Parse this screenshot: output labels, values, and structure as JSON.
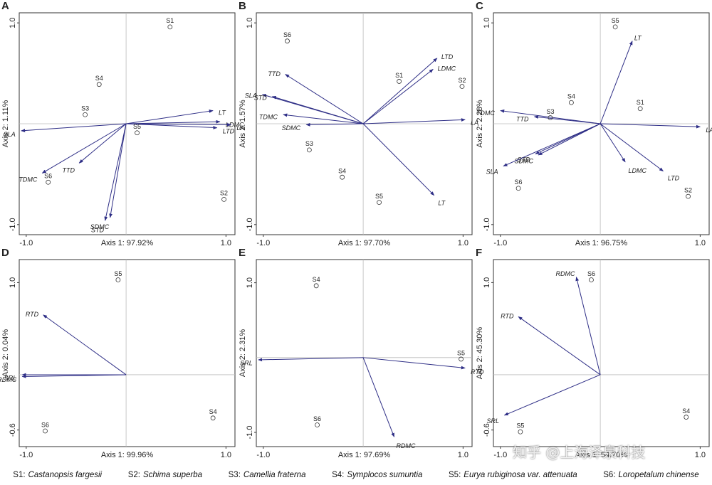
{
  "chart_data": [
    {
      "type": "biplot",
      "panel": "A",
      "xlabel": "Axis 1: 97.92%",
      "ylabel": "Axis 2: 1.11%",
      "xlim": [
        -1.07,
        1.09
      ],
      "ylim": [
        -1.1,
        1.1
      ],
      "xticks": [
        {
          "value": -1,
          "label": "-1.0"
        },
        {
          "value": 1,
          "label": "1.0"
        }
      ],
      "yticks": [
        {
          "value": 1,
          "label": "1.0"
        },
        {
          "value": -1,
          "label": "-1.0"
        }
      ],
      "points": {
        "names": [
          "S1",
          "S4",
          "S3",
          "S5",
          "S6",
          "S2"
        ],
        "x": [
          0.44,
          -0.27,
          -0.41,
          0.11,
          -0.78,
          0.98
        ],
        "y": [
          0.96,
          0.39,
          0.09,
          -0.09,
          -0.58,
          -0.75
        ]
      },
      "vectors": {
        "color": "#2e2e86",
        "names": [
          "LT",
          "LDMC",
          "LTD",
          "LA",
          "SLA",
          "TTD",
          "TDMC",
          "STD",
          "SDMC"
        ],
        "x": [
          0.87,
          0.94,
          0.91,
          1.05,
          -1.05,
          -0.47,
          -0.84,
          -0.21,
          -0.16
        ],
        "y": [
          0.13,
          0.02,
          -0.04,
          -0.01,
          -0.07,
          -0.39,
          -0.49,
          -0.96,
          -0.93
        ]
      }
    },
    {
      "type": "biplot",
      "panel": "B",
      "xlabel": "Axis 1: 97.70%",
      "ylabel": "Axis 2: 1.57%",
      "xlim": [
        -1.07,
        1.09
      ],
      "ylim": [
        -1.1,
        1.1
      ],
      "xticks": [
        {
          "value": -1,
          "label": "-1.0"
        },
        {
          "value": 1,
          "label": "1.0"
        }
      ],
      "yticks": [
        {
          "value": 1,
          "label": "1.0"
        },
        {
          "value": -1,
          "label": "-1.0"
        }
      ],
      "points": {
        "names": [
          "S6",
          "S1",
          "S2",
          "S3",
          "S4",
          "S5"
        ],
        "x": [
          -0.76,
          0.36,
          0.99,
          -0.54,
          -0.21,
          0.16
        ],
        "y": [
          0.82,
          0.42,
          0.37,
          -0.26,
          -0.53,
          -0.78
        ]
      },
      "vectors": {
        "color": "#2e2e86",
        "names": [
          "LTD",
          "LDMC",
          "LA",
          "LT",
          "TTD",
          "SLA",
          "STD",
          "TDMC",
          "SDMC"
        ],
        "x": [
          0.74,
          0.7,
          1.02,
          0.71,
          -0.78,
          -1.01,
          -0.91,
          -0.8,
          -0.57
        ],
        "y": [
          0.65,
          0.54,
          0.04,
          -0.71,
          0.49,
          0.29,
          0.27,
          0.09,
          -0.01
        ]
      }
    },
    {
      "type": "biplot",
      "panel": "C",
      "xlabel": "Axis 1: 96.75%",
      "ylabel": "Axis 2: 2.28%",
      "xlim": [
        -1.07,
        1.09
      ],
      "ylim": [
        -1.1,
        1.1
      ],
      "xticks": [
        {
          "value": -1,
          "label": "-1.0"
        },
        {
          "value": 1,
          "label": "1.0"
        }
      ],
      "yticks": [
        {
          "value": 1,
          "label": "1.0"
        },
        {
          "value": -1,
          "label": "-1.0"
        }
      ],
      "points": {
        "names": [
          "S5",
          "S4",
          "S1",
          "S3",
          "S6",
          "S2"
        ],
        "x": [
          0.15,
          -0.29,
          0.4,
          -0.5,
          -0.82,
          0.88
        ],
        "y": [
          0.96,
          0.21,
          0.15,
          0.06,
          -0.64,
          -0.72
        ]
      },
      "vectors": {
        "color": "#2e2e86",
        "names": [
          "LT",
          "LA",
          "LDMC",
          "LTD",
          "TDMC",
          "TTD",
          "STD",
          "SDMC",
          "SLA"
        ],
        "x": [
          0.32,
          1.0,
          0.25,
          0.63,
          -1.0,
          -0.66,
          -0.65,
          -0.62,
          -0.97
        ],
        "y": [
          0.82,
          -0.03,
          -0.38,
          -0.47,
          0.13,
          0.07,
          -0.3,
          -0.31,
          -0.42
        ]
      }
    },
    {
      "type": "biplot",
      "panel": "D",
      "xlabel": "Axis 1: 99.96%",
      "ylabel": "Axis 2: 0.04%",
      "xlim": [
        -1.07,
        1.09
      ],
      "ylim": [
        -0.78,
        1.25
      ],
      "xticks": [
        {
          "value": -1,
          "label": "-1.0"
        },
        {
          "value": 1,
          "label": "1.0"
        }
      ],
      "yticks": [
        {
          "value": 1,
          "label": "1.0"
        },
        -0.6
      ],
      "points": {
        "names": [
          "S5",
          "S4",
          "S6"
        ],
        "x": [
          -0.08,
          0.87,
          -0.81
        ],
        "y": [
          1.03,
          -0.47,
          -0.61
        ]
      },
      "vectors": {
        "color": "#2e2e86",
        "names": [
          "RTD",
          "SRL",
          "RDMC"
        ],
        "x": [
          -0.83,
          -1.04,
          -1.04
        ],
        "y": [
          0.65,
          0.0,
          -0.02
        ]
      }
    },
    {
      "type": "biplot",
      "panel": "E",
      "xlabel": "Axis 1: 97.69%",
      "ylabel": "Axis 2: 2.31%",
      "xlim": [
        -1.07,
        1.09
      ],
      "ylim": [
        -1.19,
        1.31
      ],
      "xticks": [
        {
          "value": -1,
          "label": "-1.0"
        },
        {
          "value": 1,
          "label": "1.0"
        }
      ],
      "yticks": [
        {
          "value": 1,
          "label": "1.0"
        },
        {
          "value": -1,
          "label": "-1.0"
        }
      ],
      "points": {
        "names": [
          "S4",
          "S5",
          "S6"
        ],
        "x": [
          -0.47,
          0.98,
          -0.46
        ],
        "y": [
          0.96,
          -0.02,
          -0.9
        ]
      },
      "vectors": {
        "color": "#2e2e86",
        "names": [
          "SRL",
          "RTD",
          "RDMC"
        ],
        "x": [
          -1.05,
          1.02,
          0.31
        ],
        "y": [
          -0.03,
          -0.14,
          -1.06
        ]
      }
    },
    {
      "type": "biplot",
      "panel": "F",
      "xlabel": "Axis 1: 54.70%",
      "ylabel": "Axis 2: 45.30%",
      "xlim": [
        -1.07,
        1.09
      ],
      "ylim": [
        -0.78,
        1.25
      ],
      "xticks": [
        {
          "value": -1,
          "label": "-1.0"
        },
        {
          "value": 1,
          "label": "1.0"
        }
      ],
      "yticks": [
        {
          "value": 1,
          "label": "1.0"
        },
        -0.6
      ],
      "points": {
        "names": [
          "S6",
          "S4",
          "S5"
        ],
        "x": [
          -0.09,
          0.86,
          -0.8
        ],
        "y": [
          1.03,
          -0.46,
          -0.62
        ]
      },
      "vectors": {
        "color": "#2e2e86",
        "names": [
          "RDMC",
          "RTD",
          "SRL"
        ],
        "x": [
          -0.24,
          -0.82,
          -0.96
        ],
        "y": [
          1.06,
          0.63,
          -0.44
        ]
      }
    }
  ],
  "legend": [
    {
      "code": "S1:",
      "species": "Castanopsis fargesii"
    },
    {
      "code": "S2:",
      "species": "Schima superba"
    },
    {
      "code": "S3:",
      "species": "Camellia fraterna"
    },
    {
      "code": "S4:",
      "species": "Symplocos sumuntia"
    },
    {
      "code": "S5:",
      "species": "Eurya rubiginosa var. attenuata"
    },
    {
      "code": "S6:",
      "species": "Loropetalum chinense"
    }
  ],
  "watermark": "知乎 @上海泽泉科技"
}
